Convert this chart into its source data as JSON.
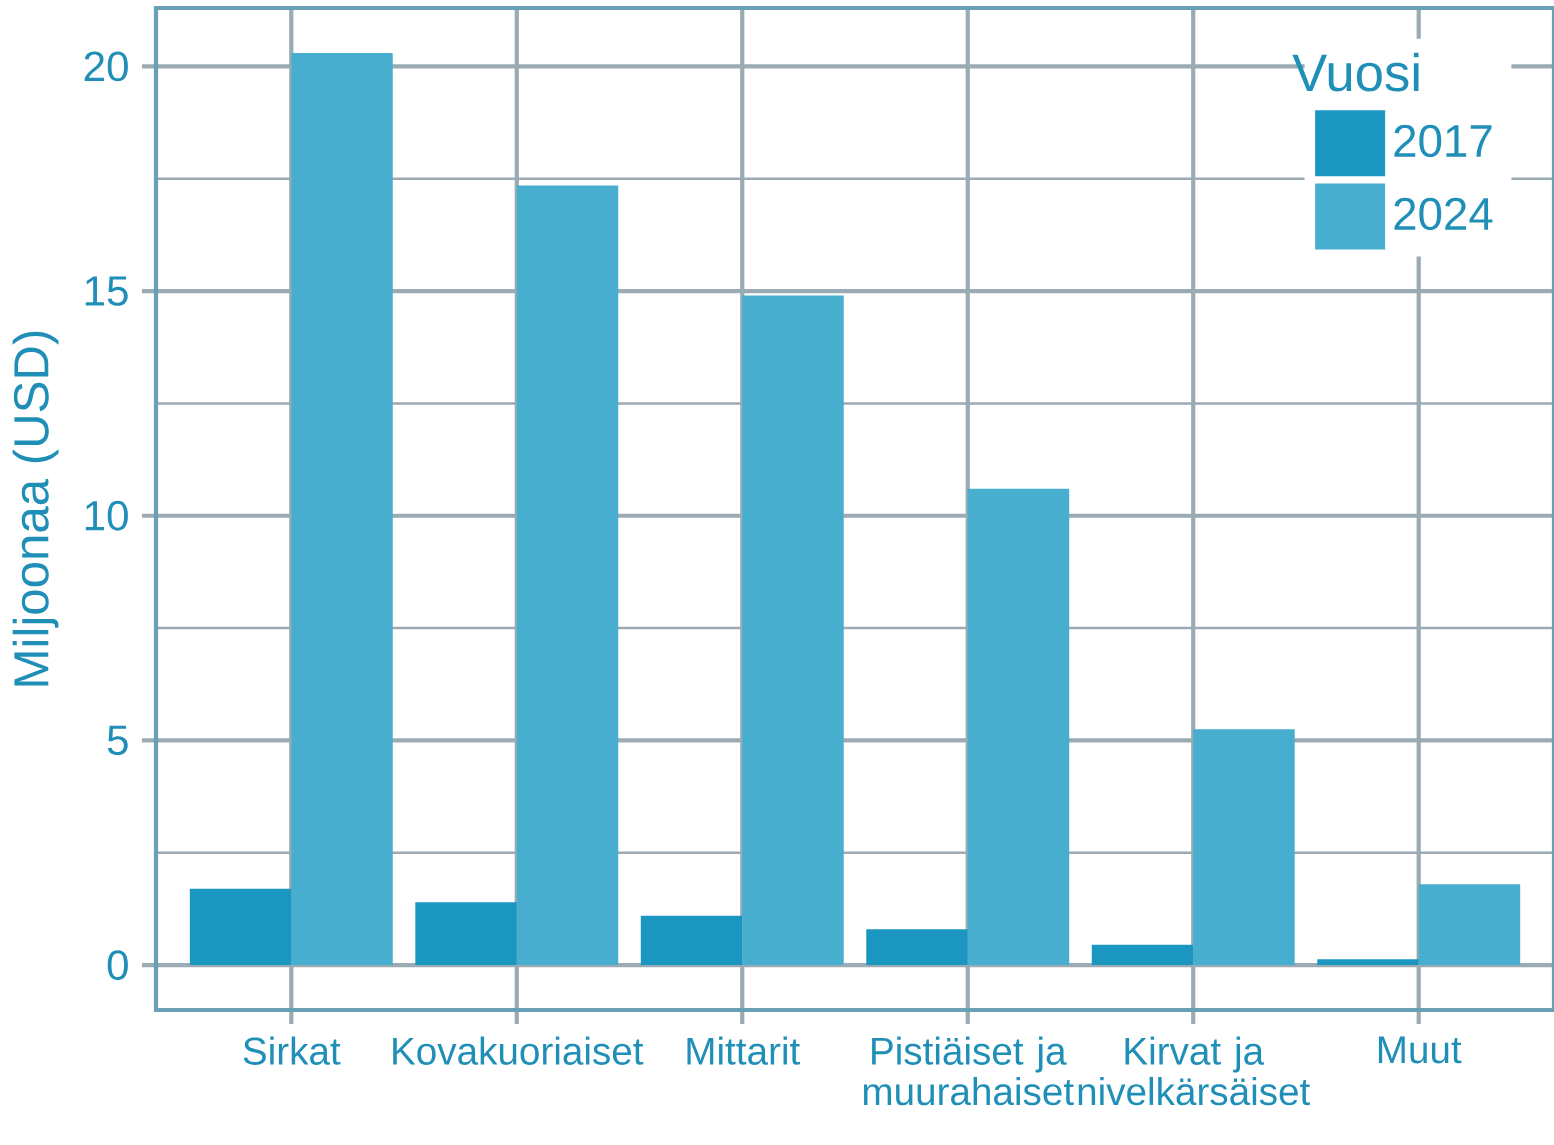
{
  "chart_data": {
    "type": "bar",
    "ylabel": "Miljoonaa (USD)",
    "legend_title": "Vuosi",
    "categories": [
      "Sirkat",
      "Kovakuoriaiset",
      "Mittarit",
      "Pistiäiset ja muurahaiset",
      "Kirvat ja nivelkärsäiset",
      "Muut"
    ],
    "series": [
      {
        "name": "2017",
        "color": "#1a96c0",
        "values": [
          1.7,
          1.4,
          1.1,
          0.8,
          0.45,
          0.13
        ]
      },
      {
        "name": "2024",
        "color": "#48aecf",
        "values": [
          20.3,
          17.35,
          14.9,
          10.6,
          5.25,
          1.8
        ]
      }
    ],
    "ylim": [
      -1,
      21.3
    ],
    "yticks": [
      0,
      5,
      10,
      15,
      20
    ],
    "grid": true,
    "legend": "top right"
  }
}
